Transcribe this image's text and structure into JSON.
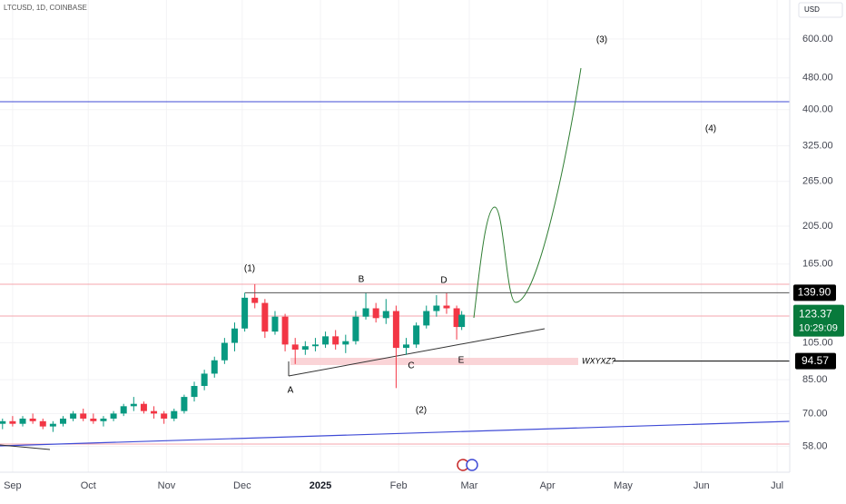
{
  "header": {
    "symbol": "LTCUSD, 1D, COINBASE",
    "currency": "USD"
  },
  "chart_data": {
    "type": "candlestick",
    "x": [
      -4,
      0,
      4,
      8,
      12,
      16,
      20,
      24,
      28,
      32,
      36,
      40,
      44,
      48,
      52,
      56,
      60,
      64,
      68,
      72,
      76,
      80,
      84,
      88,
      92,
      96,
      100,
      104,
      108,
      112,
      116,
      120,
      124,
      128,
      132,
      136,
      140,
      144,
      148,
      152,
      156,
      160,
      164,
      168,
      172,
      176,
      178
    ],
    "open": [
      66,
      67,
      66,
      68,
      67,
      65,
      66,
      68,
      70,
      68,
      67,
      68,
      70,
      73,
      74,
      71,
      70,
      68,
      71,
      77,
      82,
      88,
      95,
      105,
      114,
      136,
      132,
      112,
      122,
      104,
      101,
      103,
      104,
      109,
      104,
      106,
      122,
      128,
      121,
      126,
      102,
      104,
      116,
      126,
      130,
      128,
      115
    ],
    "high": [
      68,
      69,
      69,
      70,
      68,
      67,
      69,
      71,
      72,
      70,
      69,
      71,
      74,
      77,
      75,
      73,
      71,
      72,
      78,
      84,
      90,
      97,
      108,
      118,
      140,
      147,
      135,
      126,
      124,
      108,
      106,
      108,
      112,
      113,
      110,
      126,
      140,
      132,
      135,
      130,
      108,
      118,
      130,
      138,
      140,
      130,
      126
    ],
    "low": [
      64,
      65,
      65,
      66,
      64,
      63,
      65,
      67,
      67,
      66,
      65,
      67,
      69,
      71,
      70,
      68,
      66,
      67,
      70,
      75,
      80,
      86,
      93,
      100,
      112,
      128,
      108,
      110,
      100,
      93,
      98,
      100,
      102,
      101,
      99,
      104,
      120,
      118,
      117,
      81,
      98,
      102,
      114,
      122,
      124,
      107,
      113
    ],
    "close": [
      67,
      66,
      68,
      67,
      65,
      66,
      68,
      70,
      68,
      67,
      68,
      70,
      73,
      74,
      71,
      70,
      68,
      71,
      77,
      82,
      88,
      95,
      105,
      114,
      136,
      132,
      112,
      122,
      104,
      101,
      103,
      104,
      109,
      104,
      106,
      122,
      128,
      121,
      126,
      102,
      104,
      116,
      126,
      130,
      128,
      115,
      123.37
    ],
    "up_color": "#089981",
    "down_color": "#f23645",
    "log_scale": true,
    "xlim": [
      -5,
      308
    ],
    "xticks": [
      {
        "value": 0,
        "label": "Sep"
      },
      {
        "value": 30,
        "label": "Oct"
      },
      {
        "value": 61,
        "label": "Nov"
      },
      {
        "value": 91,
        "label": "Dec"
      },
      {
        "value": 122,
        "label": "2025"
      },
      {
        "value": 153,
        "label": "Feb"
      },
      {
        "value": 181,
        "label": "Mar"
      },
      {
        "value": 212,
        "label": "Apr"
      },
      {
        "value": 242,
        "label": "May"
      },
      {
        "value": 273,
        "label": "Jun"
      },
      {
        "value": 303,
        "label": "Jul"
      }
    ],
    "ylim": [
      50,
      750
    ],
    "yticks": [
      {
        "value": 58,
        "label": "58.00"
      },
      {
        "value": 70,
        "label": "70.00"
      },
      {
        "value": 85,
        "label": "85.00"
      },
      {
        "value": 105,
        "label": "105.00"
      },
      {
        "value": 165,
        "label": "165.00"
      },
      {
        "value": 205,
        "label": "205.00"
      },
      {
        "value": 265,
        "label": "265.00"
      },
      {
        "value": 325,
        "label": "325.00"
      },
      {
        "value": 400,
        "label": "400.00"
      },
      {
        "value": 480,
        "label": "480.00"
      },
      {
        "value": 600,
        "label": "600.00"
      }
    ],
    "levels": [
      {
        "value": 139.9,
        "label": "139.90"
      },
      {
        "value": 94.57,
        "label": "94.57"
      }
    ],
    "last_price": {
      "value": 123.37,
      "label": "123.37"
    },
    "countdown": "10:29:09",
    "annotations": [
      "(1)",
      "B",
      "D",
      "A",
      "C",
      "E",
      "(2)",
      "(3)",
      "(4)",
      "WXYXZ?"
    ]
  }
}
